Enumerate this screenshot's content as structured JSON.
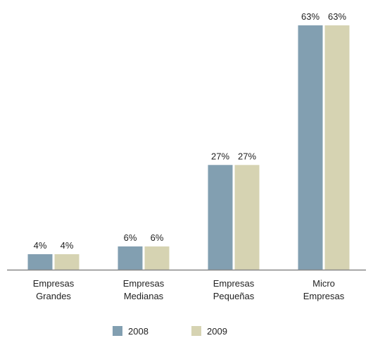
{
  "chart_data": {
    "type": "bar",
    "categories": [
      [
        "Empresas",
        "Grandes"
      ],
      [
        "Empresas",
        "Medianas"
      ],
      [
        "Empresas",
        "Pequeñas"
      ],
      [
        "Micro",
        "Empresas"
      ]
    ],
    "series": [
      {
        "name": "2008",
        "values": [
          4,
          6,
          27,
          63
        ],
        "labels": [
          "4%",
          "6%",
          "27%",
          "63%"
        ],
        "color": "#829fb1"
      },
      {
        "name": "2009",
        "values": [
          4,
          6,
          27,
          63
        ],
        "labels": [
          "4%",
          "6%",
          "27%",
          "63%"
        ],
        "color": "#d6d3b2"
      }
    ],
    "ylim": [
      0,
      63
    ],
    "axis_color": "#888888",
    "legend_position": "bottom-center",
    "grid": false
  }
}
